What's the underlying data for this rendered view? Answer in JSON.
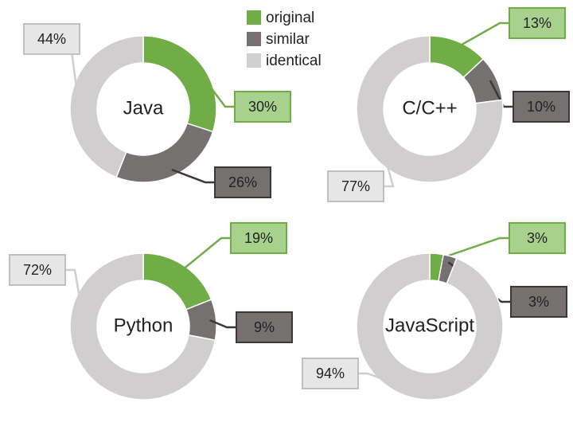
{
  "chart_data": [
    {
      "type": "donut",
      "title": "Java",
      "categories": [
        "original",
        "similar",
        "identical"
      ],
      "values": [
        30,
        26,
        44
      ],
      "value_labels": [
        "30%",
        "26%",
        "44%"
      ],
      "colors": [
        "#70ad47",
        "#767171",
        "#d0cece"
      ]
    },
    {
      "type": "donut",
      "title": "C/C++",
      "categories": [
        "original",
        "similar",
        "identical"
      ],
      "values": [
        13,
        10,
        77
      ],
      "value_labels": [
        "13%",
        "10%",
        "77%"
      ],
      "colors": [
        "#70ad47",
        "#767171",
        "#d0cece"
      ]
    },
    {
      "type": "donut",
      "title": "Python",
      "categories": [
        "original",
        "similar",
        "identical"
      ],
      "values": [
        19,
        9,
        72
      ],
      "value_labels": [
        "19%",
        "9%",
        "72%"
      ],
      "colors": [
        "#70ad47",
        "#767171",
        "#d0cece"
      ]
    },
    {
      "type": "donut",
      "title": "JavaScript",
      "categories": [
        "original",
        "similar",
        "identical"
      ],
      "values": [
        3,
        3,
        94
      ],
      "value_labels": [
        "3%",
        "3%",
        "94%"
      ],
      "colors": [
        "#70ad47",
        "#767171",
        "#d0cece"
      ]
    }
  ]
}
